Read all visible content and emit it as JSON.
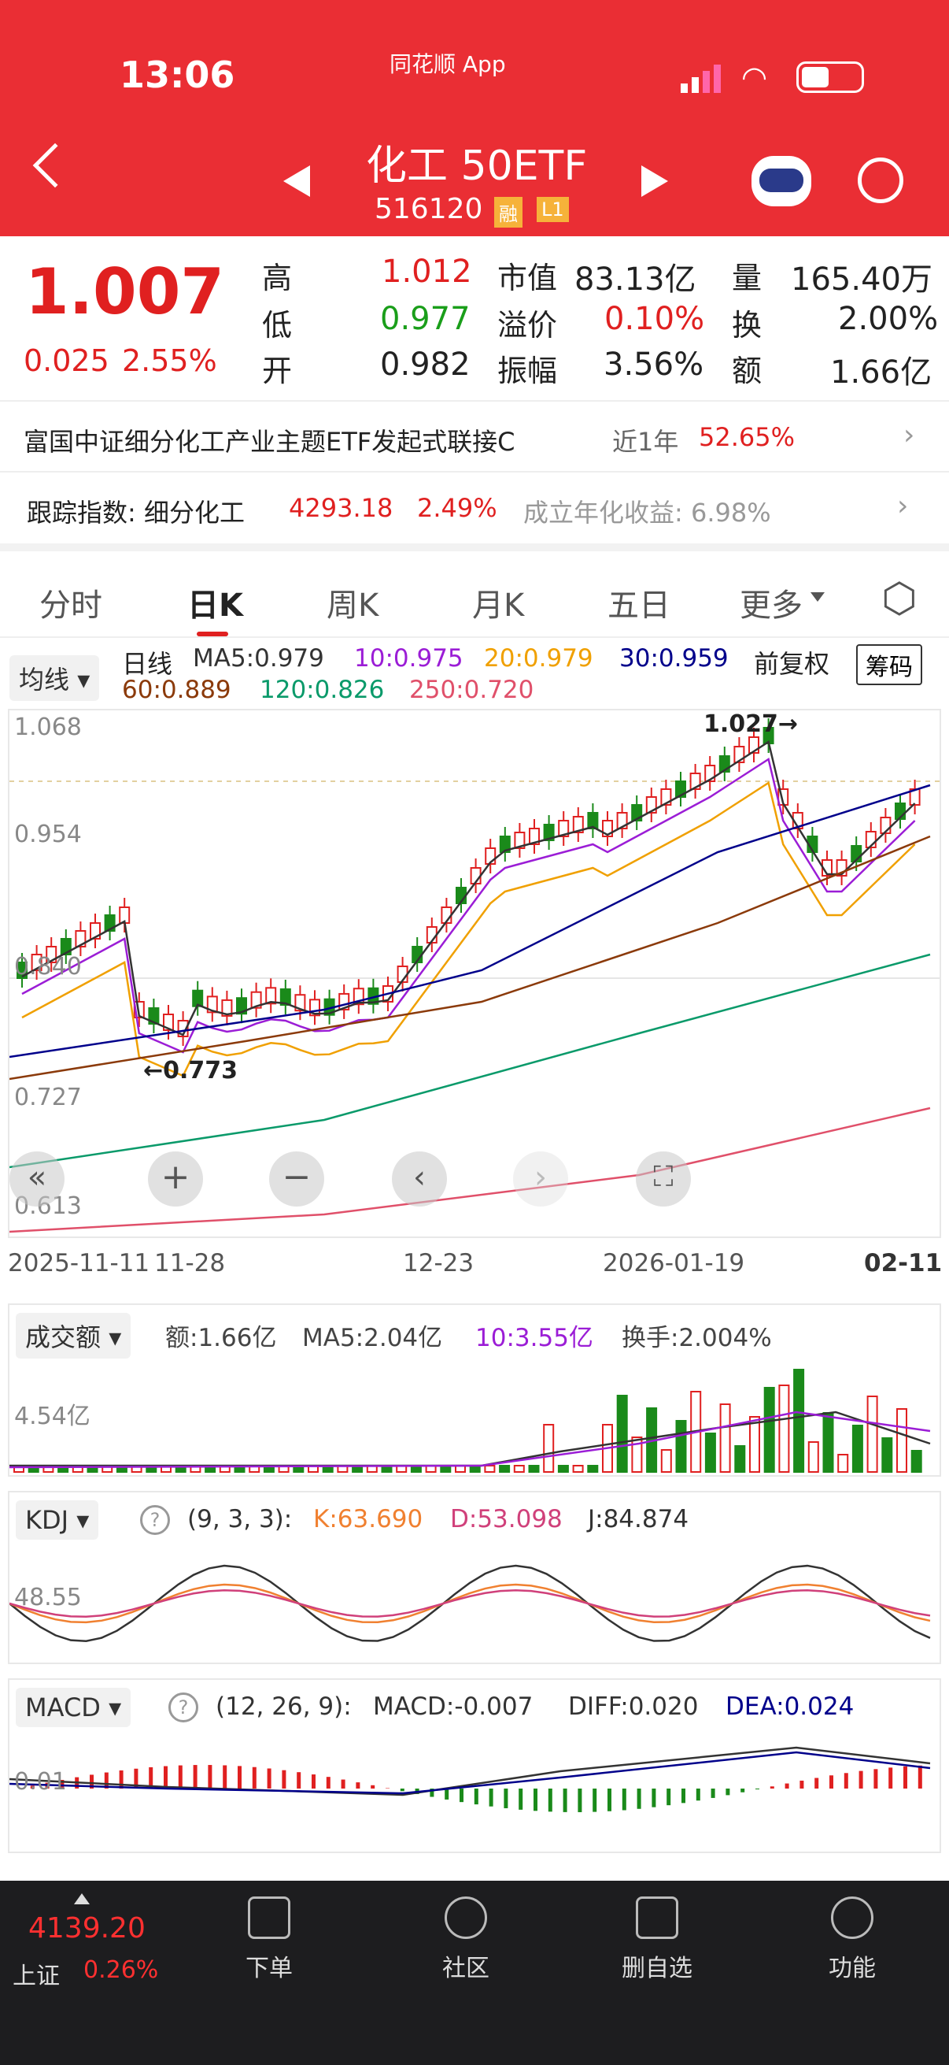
{
  "status": {
    "time": "13:06",
    "carrier": "同花顺 App"
  },
  "header": {
    "title": "化工 50ETF",
    "code": "516120",
    "badge1": "融",
    "badge2": "L1"
  },
  "quote": {
    "price": "1.007",
    "change": "0.025",
    "pct": "2.55%",
    "r1": {
      "l1": "高",
      "v1": "1.012",
      "l2": "市值",
      "v2": "83.13亿",
      "l3": "量",
      "v3": "165.40万"
    },
    "r2": {
      "l1": "低",
      "v1": "0.977",
      "l2": "溢价",
      "v2": "0.10%",
      "l3": "换",
      "v3": "2.00%"
    },
    "r3": {
      "l1": "开",
      "v1": "0.982",
      "l2": "振幅",
      "v2": "3.56%",
      "l3": "额",
      "v3": "1.66亿"
    }
  },
  "fund": {
    "name": "富国中证细分化工产业主题ETF发起式联接C",
    "period": "近1年",
    "ret": "52.65%"
  },
  "track": {
    "label": "跟踪指数: 细分化工",
    "value": "4293.18",
    "pct": "2.49%",
    "annual": "成立年化收益: 6.98%"
  },
  "tabs": [
    "分时",
    "日K",
    "周K",
    "月K",
    "五日",
    "更多"
  ],
  "kline": {
    "ma_btn": "均线",
    "line": "日线",
    "ma5": "MA5:0.979",
    "ma10": "10:0.975",
    "ma20": "20:0.979",
    "ma30": "30:0.959",
    "fq": "前复权",
    "chip": "筹码",
    "ma60": "60:0.889",
    "ma120": "120:0.826",
    "ma250": "250:0.720",
    "y1": "1.068",
    "y2": "0.954",
    "y3": "0.840",
    "y4": "0.727",
    "y5": "0.613",
    "hi": "1.027→",
    "lo": "←0.773",
    "x1": "2025-11-11",
    "x2": "11-28",
    "x3": "12-23",
    "x4": "2026-01-19",
    "x5": "02-11"
  },
  "volume": {
    "btn": "成交额",
    "amt": "额:1.66亿",
    "ma5": "MA5:2.04亿",
    "ma10": "10:3.55亿",
    "turn": "换手:2.004%",
    "y": "4.54亿"
  },
  "kdj": {
    "btn": "KDJ",
    "params": "(9, 3, 3):",
    "k": "K:63.690",
    "d": "D:53.098",
    "j": "J:84.874",
    "y": "48.55"
  },
  "macd": {
    "btn": "MACD",
    "params": "(12, 26, 9):",
    "macd": "MACD:-0.007",
    "diff": "DIFF:0.020",
    "dea": "DEA:0.024",
    "y": "0.01"
  },
  "bottom": {
    "idx": "4139.20",
    "name": "上证",
    "pct": "0.26%",
    "items": [
      "下单",
      "社区",
      "删自选",
      "功能"
    ]
  },
  "colors": {
    "up": "#e02020",
    "down": "#1a8a1a",
    "ma5": "#333333",
    "ma10": "#9b1dd6",
    "ma20": "#f0a000",
    "ma30": "#00008b",
    "ma60": "#8b3a0a",
    "ma120": "#0a9a6a",
    "ma250": "#e0506a"
  }
}
